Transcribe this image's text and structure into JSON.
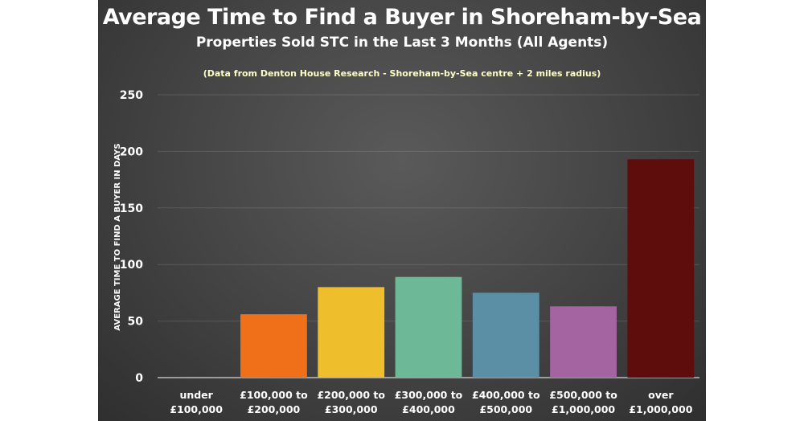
{
  "chart_data": {
    "type": "bar",
    "title": "Average Time to Find a Buyer in Shoreham-by-Sea",
    "subtitle": "Properties Sold STC in the Last 3 Months (All Agents)",
    "source_note": "(Data from Denton House Research - Shoreham-by-Sea centre + 2 miles radius)",
    "ylabel": "AVERAGE TIME TO FIND A BUYER IN DAYS",
    "xlabel": "",
    "ylim": [
      0,
      250
    ],
    "yticks": [
      "0",
      "50",
      "100",
      "150",
      "200",
      "250"
    ],
    "grid": true,
    "categories": [
      [
        "under",
        "£100,000"
      ],
      [
        "£100,000 to",
        "£200,000"
      ],
      [
        "£200,000 to",
        "£300,000"
      ],
      [
        "£300,000 to",
        "£400,000"
      ],
      [
        "£400,000 to",
        "£500,000"
      ],
      [
        "£500,000 to",
        "£1,000,000"
      ],
      [
        "over",
        "£1,000,000"
      ]
    ],
    "values": [
      0,
      56,
      80,
      89,
      75,
      63,
      193
    ],
    "colors": [
      "#f0701a",
      "#f0701a",
      "#efbe2c",
      "#6db897",
      "#5a8fa6",
      "#a464a2",
      "#5e0c0c"
    ]
  }
}
